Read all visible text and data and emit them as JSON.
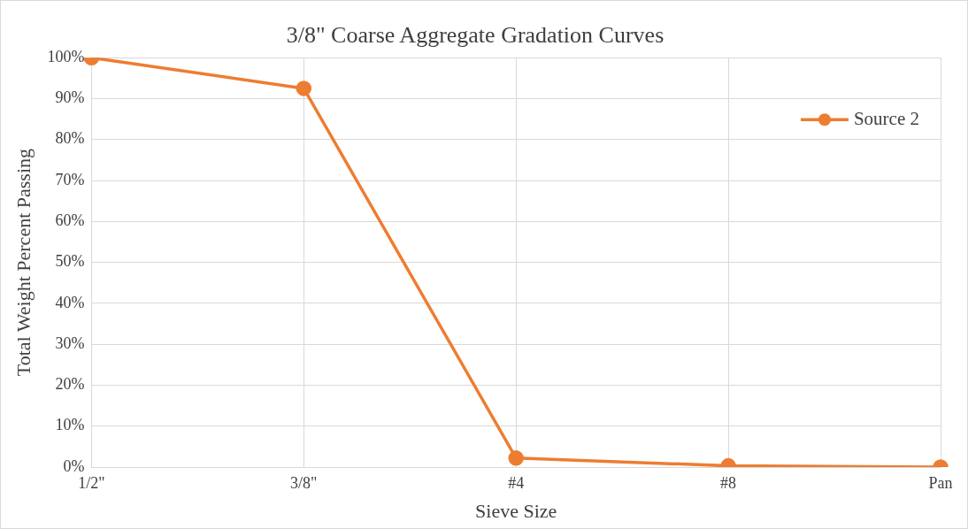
{
  "chart_data": {
    "type": "line",
    "title": "3/8\" Coarse Aggregate Gradation Curves",
    "xlabel": "Sieve Size",
    "ylabel": "Total Weight Percent Passing",
    "categories": [
      "1/2\"",
      "3/8\"",
      "#4",
      "#8",
      "Pan"
    ],
    "series": [
      {
        "name": "Source 2",
        "color": "#ed7d31",
        "values": [
          100,
          92.5,
          2.2,
          0.3,
          0
        ]
      }
    ],
    "ylim": [
      0,
      100
    ],
    "yticks": [
      {
        "value": 0,
        "label": "0%"
      },
      {
        "value": 10,
        "label": "10%"
      },
      {
        "value": 20,
        "label": "20%"
      },
      {
        "value": 30,
        "label": "30%"
      },
      {
        "value": 40,
        "label": "40%"
      },
      {
        "value": 50,
        "label": "50%"
      },
      {
        "value": 60,
        "label": "60%"
      },
      {
        "value": 70,
        "label": "70%"
      },
      {
        "value": 80,
        "label": "80%"
      },
      {
        "value": 90,
        "label": "90%"
      },
      {
        "value": 100,
        "label": "100%"
      }
    ],
    "grid": true,
    "legend": "top right",
    "marker": "circle",
    "line_style": "solid"
  }
}
